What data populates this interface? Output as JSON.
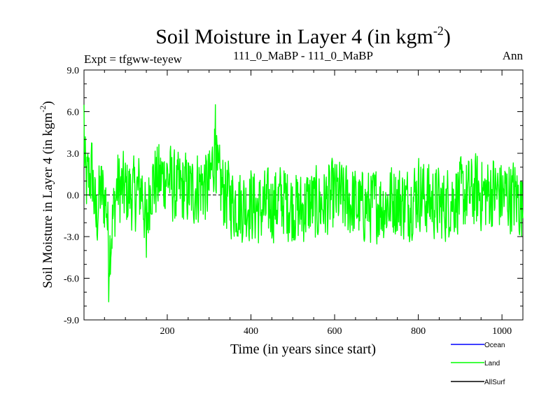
{
  "chart_data": {
    "type": "line",
    "title_main": "Soil Moisture in Layer 4 (in kgm",
    "title_sup": "-2",
    "title_close": ")",
    "subtitle_left": "Expt = tfgww-teyew",
    "subtitle_center": "111_0_MaBP - 111_0_MaBP",
    "subtitle_right": "Ann",
    "xlabel": "Time (in years since start)",
    "ylabel_main": "Soil Moisture in Layer 4 (in kgm",
    "ylabel_sup": "-2",
    "ylabel_close": ")",
    "xlim": [
      1,
      1050
    ],
    "ylim": [
      -9,
      9
    ],
    "xticks": [
      200,
      400,
      600,
      800,
      1000
    ],
    "xtick_labels": [
      "200",
      "400",
      "600",
      "800",
      "1000"
    ],
    "yticks": [
      -9,
      -6,
      -3,
      0,
      3,
      6,
      9
    ],
    "ytick_labels": [
      "-9.0",
      "-6.0",
      "-3.0",
      "0.0",
      "3.0",
      "6.0",
      "9.0"
    ],
    "zero_line": 0,
    "series": [
      {
        "name": "Ocean",
        "color": "#0000ff",
        "values": []
      },
      {
        "name": "Land",
        "color": "#00ff00",
        "values": "land_series"
      },
      {
        "name": "AllSurf",
        "color": "#000000",
        "values": []
      }
    ],
    "land_series": {
      "x_start": 1,
      "x_step": 1,
      "anchors_x": [
        1,
        5,
        20,
        30,
        40,
        55,
        60,
        80,
        100,
        120,
        140,
        150,
        160,
        180,
        200,
        220,
        240,
        260,
        280,
        300,
        315,
        320,
        340,
        360,
        380,
        400,
        420,
        440,
        460,
        480,
        500,
        520,
        540,
        560,
        580,
        600,
        620,
        640,
        660,
        680,
        700,
        720,
        740,
        760,
        780,
        800,
        820,
        840,
        860,
        880,
        900,
        920,
        940,
        960,
        980,
        1000,
        1020,
        1040,
        1050
      ],
      "anchors_y": [
        6.5,
        1.5,
        3.0,
        -3.4,
        0.5,
        -1.0,
        -7.7,
        1.0,
        0.5,
        0.0,
        1.0,
        -4.5,
        1.5,
        2.0,
        2.5,
        0.5,
        1.0,
        0.5,
        1.5,
        1.0,
        6.5,
        2.0,
        0.0,
        -1.0,
        -1.5,
        -1.0,
        -2.0,
        -1.5,
        -1.0,
        -0.5,
        -1.5,
        -2.0,
        -1.0,
        -1.5,
        -1.0,
        0.0,
        -0.5,
        -1.0,
        -1.5,
        -1.5,
        -1.0,
        -1.5,
        -0.5,
        -1.0,
        -1.0,
        0.5,
        -0.5,
        -1.0,
        -1.5,
        -0.5,
        0.0,
        0.0,
        0.5,
        0.0,
        0.5,
        0.0,
        0.0,
        -0.5,
        -2.0
      ],
      "noise_amplitude": 2.6
    }
  }
}
